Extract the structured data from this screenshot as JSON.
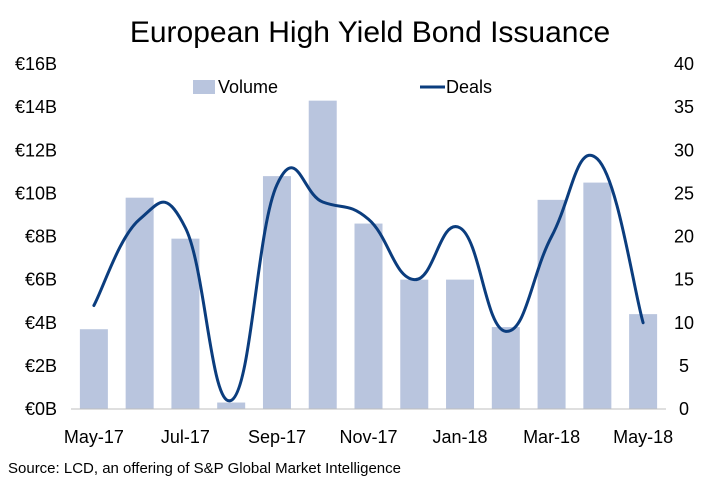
{
  "chart_data": {
    "type": "bar",
    "title": "European High Yield Bond Issuance",
    "categories": [
      "May-17",
      "Jun-17",
      "Jul-17",
      "Aug-17",
      "Sep-17",
      "Oct-17",
      "Nov-17",
      "Dec-17",
      "Jan-18",
      "Feb-18",
      "Mar-18",
      "Apr-18",
      "May-18"
    ],
    "x_tick_labels": [
      "May-17",
      "",
      "Jul-17",
      "",
      "Sep-17",
      "",
      "Nov-17",
      "",
      "Jan-18",
      "",
      "Mar-18",
      "",
      "May-18"
    ],
    "series": [
      {
        "name": "Volume",
        "type": "bar",
        "axis": "left",
        "color": "#b9c5de",
        "values": [
          3.7,
          9.8,
          7.9,
          0.3,
          10.8,
          14.3,
          8.6,
          6.0,
          6.0,
          3.8,
          9.7,
          10.5,
          4.4
        ]
      },
      {
        "name": "Deals",
        "type": "line",
        "axis": "right",
        "color": "#0b3d7e",
        "values": [
          12,
          22,
          21,
          1,
          26,
          24,
          22,
          15,
          21,
          9,
          20,
          29,
          10
        ]
      }
    ],
    "y_left": {
      "min": 0,
      "max": 16,
      "step": 2,
      "tick_labels": [
        "€0B",
        "€2B",
        "€4B",
        "€6B",
        "€8B",
        "€10B",
        "€12B",
        "€14B",
        "€16B"
      ]
    },
    "y_right": {
      "min": 0,
      "max": 40,
      "step": 5,
      "tick_labels": [
        "0",
        "5",
        "10",
        "15",
        "20",
        "25",
        "30",
        "35",
        "40"
      ]
    },
    "grid": false,
    "legend": "top"
  },
  "footer": {
    "source": "Source: LCD, an offering of S&P Global Market Intelligence"
  }
}
